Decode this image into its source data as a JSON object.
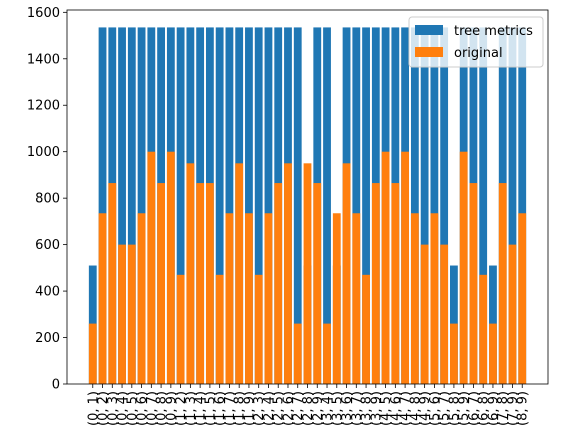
{
  "chart_data": {
    "type": "bar",
    "title": "",
    "xlabel": "",
    "ylabel": "",
    "ylim": [
      0,
      1610
    ],
    "yticks": [
      0,
      200,
      400,
      600,
      800,
      1000,
      1200,
      1400,
      1600
    ],
    "grid": false,
    "legend_position": "upper right",
    "categories": [
      "(0, 1)",
      "(0, 2)",
      "(0, 3)",
      "(0, 4)",
      "(0, 5)",
      "(0, 6)",
      "(0, 7)",
      "(0, 8)",
      "(0, 9)",
      "(1, 2)",
      "(1, 3)",
      "(1, 4)",
      "(1, 5)",
      "(1, 6)",
      "(1, 7)",
      "(1, 8)",
      "(1, 9)",
      "(2, 3)",
      "(2, 4)",
      "(2, 5)",
      "(2, 6)",
      "(2, 7)",
      "(2, 8)",
      "(2, 9)",
      "(3, 4)",
      "(3, 5)",
      "(3, 6)",
      "(3, 7)",
      "(3, 8)",
      "(3, 9)",
      "(4, 5)",
      "(4, 6)",
      "(4, 7)",
      "(4, 8)",
      "(4, 9)",
      "(5, 6)",
      "(5, 7)",
      "(5, 8)",
      "(5, 9)",
      "(6, 7)",
      "(6, 8)",
      "(6, 9)",
      "(7, 8)",
      "(7, 9)",
      "(8, 9)"
    ],
    "series": [
      {
        "name": "tree metrics",
        "color": "#1f77b4",
        "values": [
          510,
          1535,
          1535,
          1535,
          1535,
          1535,
          1535,
          1535,
          1535,
          1535,
          1535,
          1535,
          1535,
          1535,
          1535,
          1535,
          1535,
          1535,
          1535,
          1535,
          1535,
          1535,
          510,
          1535,
          1535,
          510,
          1535,
          1535,
          1535,
          1535,
          1535,
          1535,
          1535,
          1535,
          1535,
          1535,
          1535,
          510,
          1535,
          1535,
          1535,
          510,
          1535,
          1535,
          1535
        ]
      },
      {
        "name": "original",
        "color": "#ff7f0e",
        "values": [
          260,
          735,
          865,
          600,
          600,
          735,
          1000,
          865,
          1000,
          470,
          950,
          865,
          865,
          470,
          735,
          950,
          735,
          470,
          735,
          865,
          950,
          260,
          950,
          865,
          260,
          735,
          950,
          735,
          470,
          865,
          1000,
          865,
          1000,
          735,
          600,
          735,
          600,
          260,
          1000,
          865,
          470,
          260,
          865,
          600,
          735
        ]
      }
    ]
  }
}
